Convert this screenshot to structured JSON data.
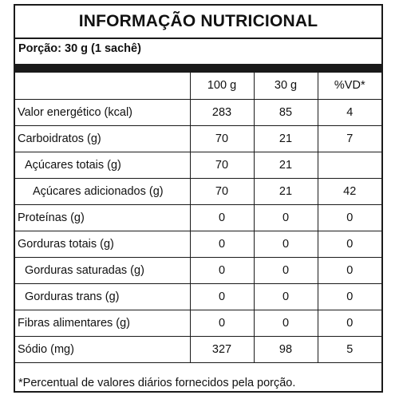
{
  "title": "INFORMAÇÃO NUTRICIONAL",
  "portion": "Porção: 30 g (1 sachê)",
  "columns": [
    "100 g",
    "30 g",
    "%VD*"
  ],
  "rows": [
    {
      "label": "Valor energético (kcal)",
      "v100": "283",
      "v30": "85",
      "vd": "4"
    },
    {
      "label": "Carboidratos (g)",
      "v100": "70",
      "v30": "21",
      "vd": "7"
    },
    {
      "label": "Açúcares totais (g)",
      "v100": "70",
      "v30": "21",
      "vd": ""
    },
    {
      "label": "Açúcares adicionados (g)",
      "v100": "70",
      "v30": "21",
      "vd": "42"
    },
    {
      "label": "Proteínas (g)",
      "v100": "0",
      "v30": "0",
      "vd": "0"
    },
    {
      "label": "Gorduras totais (g)",
      "v100": "0",
      "v30": "0",
      "vd": "0"
    },
    {
      "label": "Gorduras saturadas (g)",
      "v100": "0",
      "v30": "0",
      "vd": "0"
    },
    {
      "label": "Gorduras trans (g)",
      "v100": "0",
      "v30": "0",
      "vd": "0"
    },
    {
      "label": "Fibras alimentares (g)",
      "v100": "0",
      "v30": "0",
      "vd": "0"
    },
    {
      "label": "Sódio (mg)",
      "v100": "327",
      "v30": "98",
      "vd": "5"
    }
  ],
  "footnote": "*Percentual de valores diários fornecidos pela porção."
}
